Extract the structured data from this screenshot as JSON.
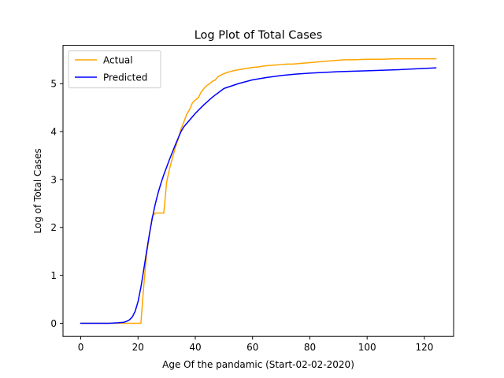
{
  "chart_data": {
    "type": "line",
    "title": "Log Plot of Total Cases",
    "xlabel": "Age Of the pandamic (Start-02-02-2020)",
    "ylabel": "Log of Total Cases",
    "xlim": [
      -6.2,
      130.2
    ],
    "ylim": [
      -0.275,
      5.8
    ],
    "xticks": [
      0,
      20,
      40,
      60,
      80,
      100,
      120
    ],
    "yticks": [
      0,
      1,
      2,
      3,
      4,
      5
    ],
    "legend": "upper left",
    "grid": false,
    "series": [
      {
        "name": "Actual",
        "color": "#ffa500",
        "x": [
          0,
          5,
          10,
          15,
          18,
          20,
          21,
          22,
          23,
          24,
          25,
          26,
          27,
          28,
          29,
          30,
          31,
          32,
          33,
          34,
          35,
          36,
          37,
          38,
          39,
          40,
          41,
          42,
          43,
          44,
          45,
          46,
          47,
          48,
          49,
          50,
          52,
          54,
          56,
          58,
          60,
          62,
          64,
          66,
          68,
          70,
          72,
          74,
          76,
          78,
          80,
          82,
          84,
          86,
          88,
          90,
          92,
          95,
          100,
          105,
          110,
          115,
          120,
          124
        ],
        "y": [
          0,
          0,
          0,
          0,
          0,
          0,
          0,
          0.78,
          1.45,
          1.85,
          2.23,
          2.3,
          2.3,
          2.3,
          2.3,
          2.95,
          3.22,
          3.45,
          3.66,
          3.84,
          4.05,
          4.2,
          4.36,
          4.46,
          4.6,
          4.66,
          4.7,
          4.82,
          4.9,
          4.96,
          5.0,
          5.05,
          5.08,
          5.15,
          5.18,
          5.21,
          5.25,
          5.28,
          5.3,
          5.32,
          5.34,
          5.35,
          5.37,
          5.38,
          5.39,
          5.4,
          5.41,
          5.41,
          5.42,
          5.43,
          5.44,
          5.45,
          5.46,
          5.47,
          5.48,
          5.49,
          5.5,
          5.5,
          5.51,
          5.51,
          5.52,
          5.52,
          5.52,
          5.52
        ]
      },
      {
        "name": "Predicted",
        "color": "#0000ff",
        "x": [
          0,
          5,
          10,
          13,
          15,
          16,
          17,
          18,
          19,
          20,
          21,
          22,
          23,
          24,
          25,
          26,
          27,
          28,
          29,
          30,
          31,
          32,
          33,
          34,
          35,
          36,
          37,
          40,
          43,
          46,
          50,
          55,
          60,
          65,
          70,
          75,
          80,
          90,
          100,
          110,
          124
        ],
        "y": [
          0,
          0,
          0,
          0.01,
          0.02,
          0.04,
          0.07,
          0.13,
          0.25,
          0.45,
          0.75,
          1.12,
          1.5,
          1.87,
          2.2,
          2.48,
          2.72,
          2.92,
          3.1,
          3.26,
          3.42,
          3.57,
          3.72,
          3.86,
          4.0,
          4.1,
          4.17,
          4.38,
          4.56,
          4.72,
          4.9,
          5.0,
          5.08,
          5.13,
          5.17,
          5.2,
          5.22,
          5.25,
          5.27,
          5.29,
          5.33
        ]
      }
    ]
  }
}
